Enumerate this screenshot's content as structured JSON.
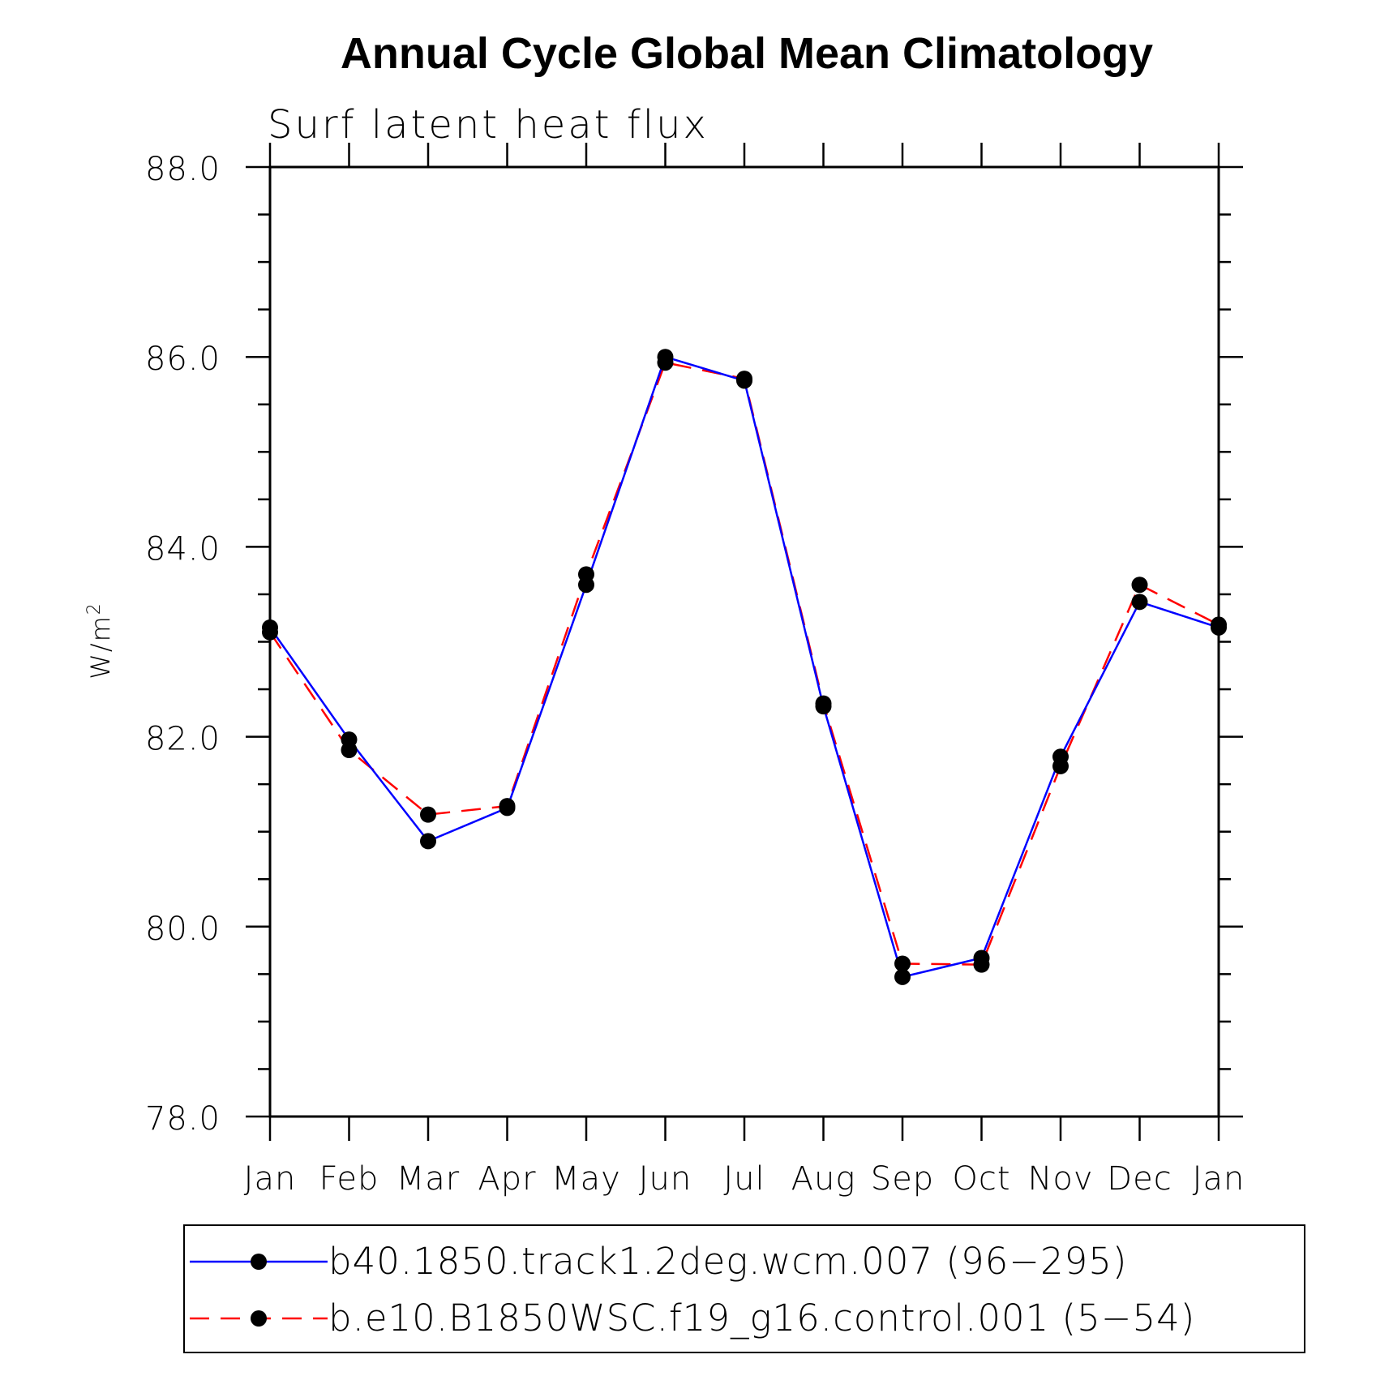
{
  "chart_data": {
    "type": "line",
    "title": "Annual Cycle Global Mean Climatology",
    "subtitle": "Surf latent heat flux",
    "ylabel": "W/m",
    "ylabel_superscript": "2",
    "xlabel": "",
    "ylim": [
      78.0,
      88.0
    ],
    "yticks": [
      "78.0",
      "80.0",
      "82.0",
      "84.0",
      "86.0",
      "88.0"
    ],
    "categories": [
      "Jan",
      "Feb",
      "Mar",
      "Apr",
      "May",
      "Jun",
      "Jul",
      "Aug",
      "Sep",
      "Oct",
      "Nov",
      "Dec",
      "Jan"
    ],
    "series": [
      {
        "name": "b40.1850.track1.2deg.wcm.007 (96−295)",
        "color": "#0000ff",
        "dash": "solid",
        "values": [
          83.15,
          81.97,
          80.9,
          81.25,
          83.6,
          86.0,
          85.75,
          82.32,
          79.47,
          79.67,
          81.79,
          83.42,
          83.15
        ]
      },
      {
        "name": "b.e10.B1850WSC.f19_g16.control.001 (5−54)",
        "color": "#ff0000",
        "dash": "dashed",
        "values": [
          83.1,
          81.86,
          81.18,
          81.27,
          83.71,
          85.94,
          85.77,
          82.35,
          79.61,
          79.6,
          81.69,
          83.6,
          83.18
        ]
      }
    ],
    "grid": false,
    "legend_position": "bottom"
  }
}
